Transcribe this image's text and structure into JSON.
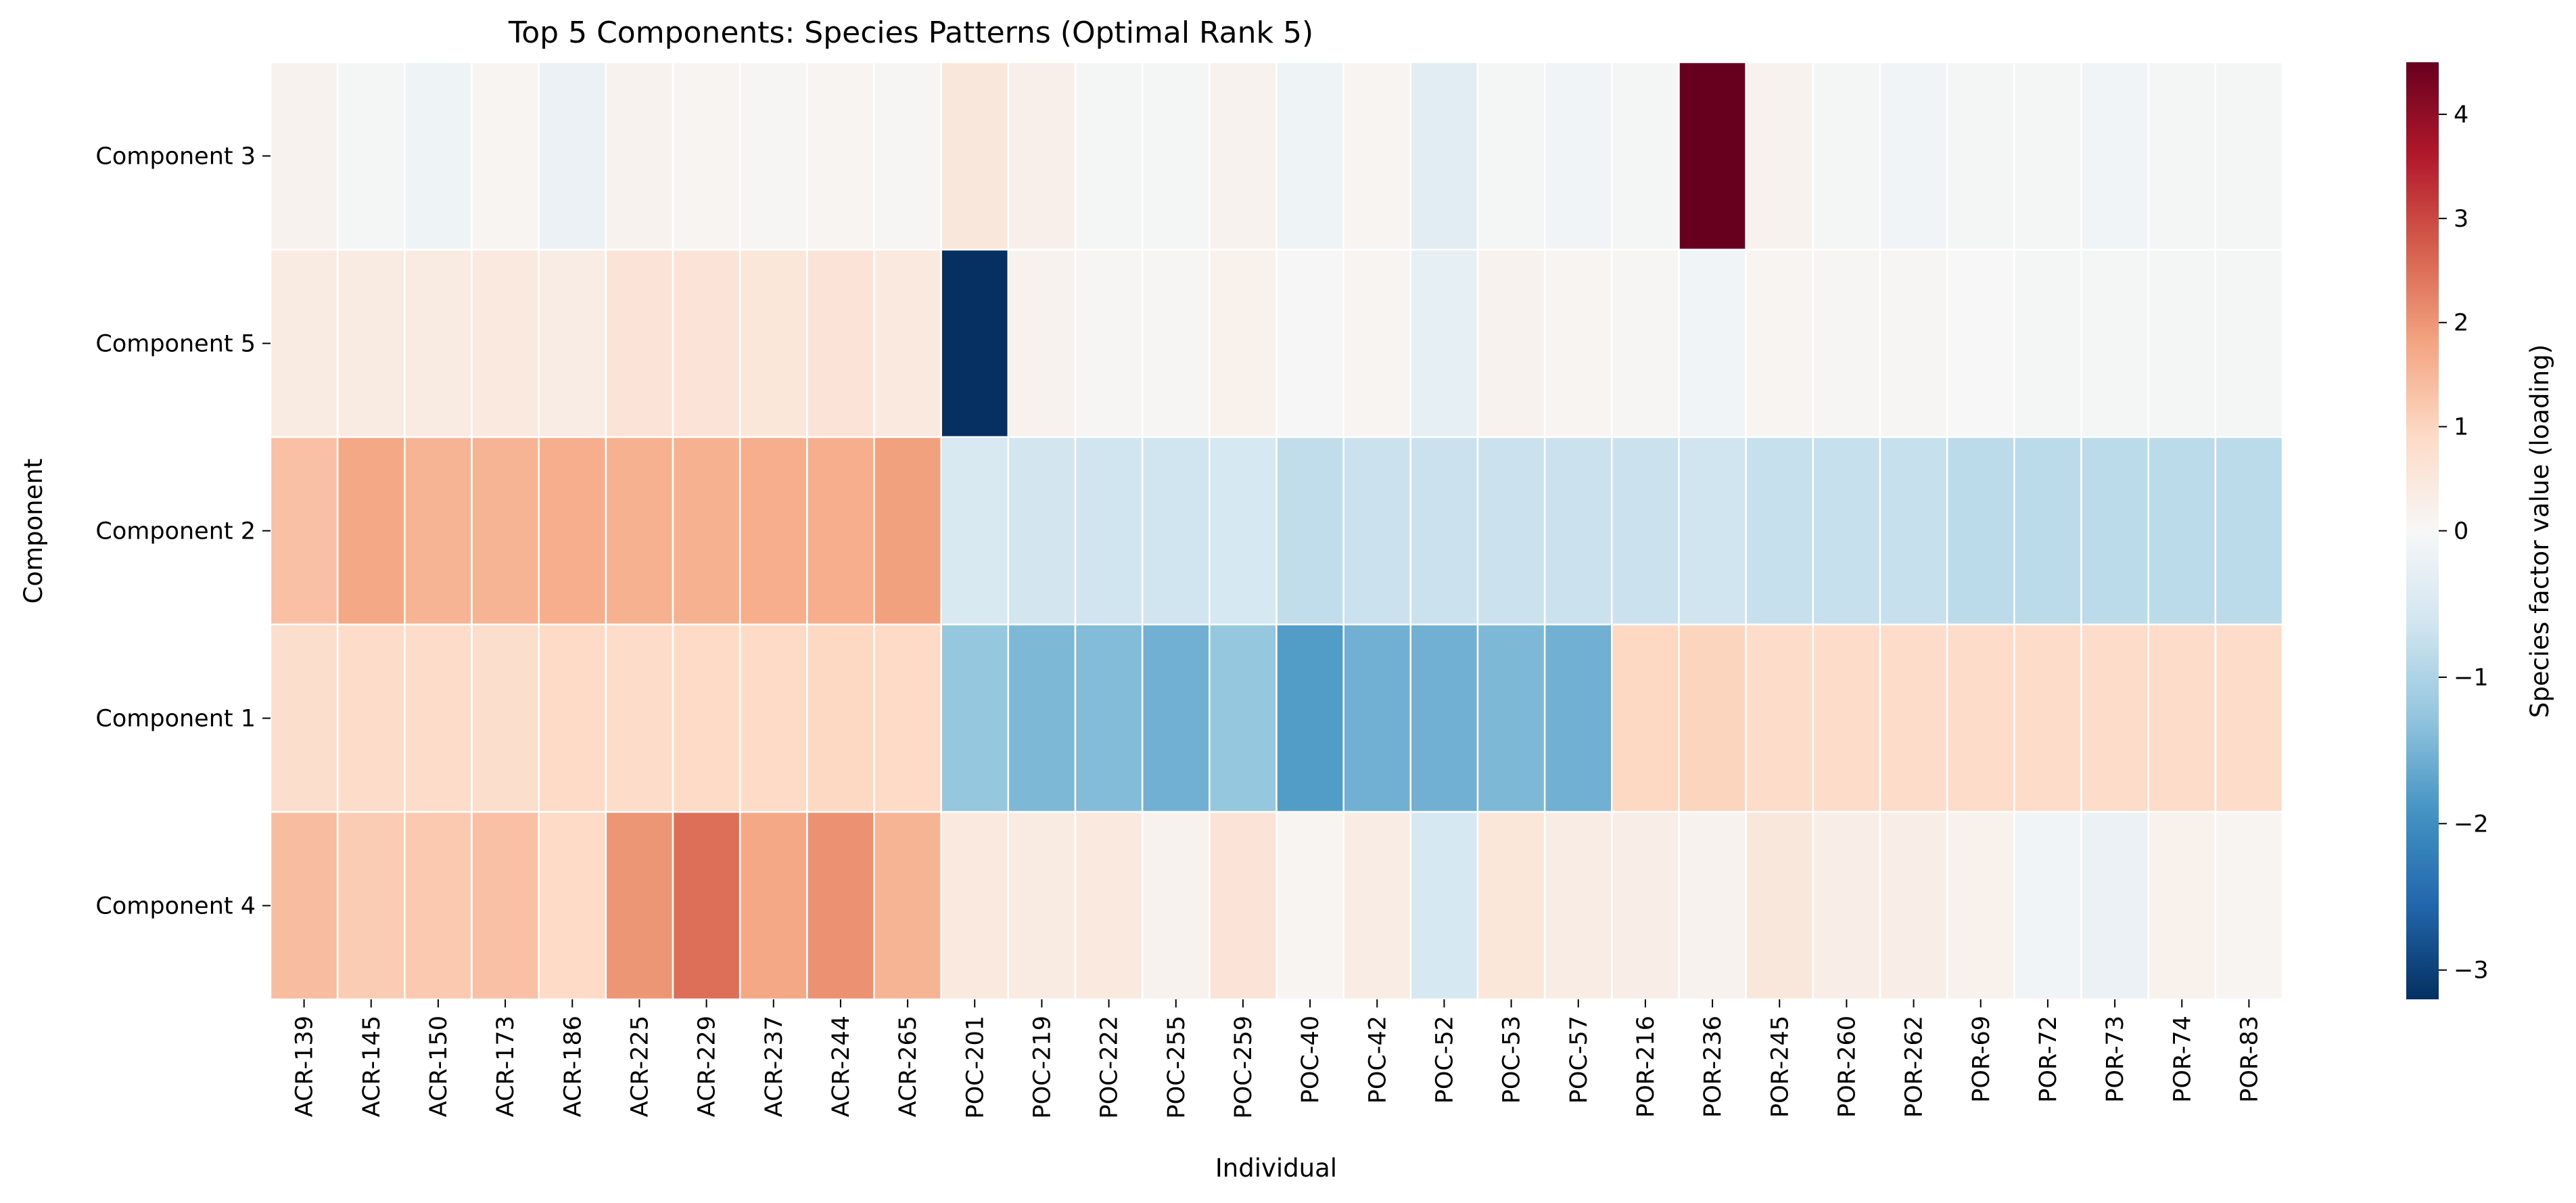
{
  "chart_data": {
    "type": "heatmap",
    "title": "Top 5 Components: Species Patterns (Optimal Rank 5)",
    "xlabel": "Individual",
    "ylabel": "Component",
    "colorbar_label": "Species factor value (loading)",
    "colormap": "RdBu_r",
    "vmin": -3.2,
    "vmax": 4.5,
    "colorbar_ticks": [
      -3,
      -2,
      -1,
      0,
      1,
      2,
      3,
      4
    ],
    "colorbar_tick_labels": [
      "−3",
      "−2",
      "−1",
      "0",
      "1",
      "2",
      "3",
      "4"
    ],
    "x_categories": [
      "ACR-139",
      "ACR-145",
      "ACR-150",
      "ACR-173",
      "ACR-186",
      "ACR-225",
      "ACR-229",
      "ACR-237",
      "ACR-244",
      "ACR-265",
      "POC-201",
      "POC-219",
      "POC-222",
      "POC-255",
      "POC-259",
      "POC-40",
      "POC-42",
      "POC-52",
      "POC-53",
      "POC-57",
      "POR-216",
      "POR-236",
      "POR-245",
      "POR-260",
      "POR-262",
      "POR-69",
      "POR-72",
      "POR-73",
      "POR-74",
      "POR-83"
    ],
    "y_categories": [
      "Component 3",
      "Component 5",
      "Component 2",
      "Component 1",
      "Component 4"
    ],
    "values": [
      [
        0.15,
        -0.05,
        -0.15,
        0.1,
        -0.2,
        0.15,
        0.1,
        0.05,
        0.1,
        0.05,
        0.5,
        0.25,
        -0.05,
        -0.05,
        0.15,
        -0.15,
        0.1,
        -0.35,
        -0.05,
        -0.1,
        -0.05,
        4.5,
        0.15,
        -0.05,
        -0.1,
        -0.05,
        -0.05,
        -0.1,
        -0.05,
        -0.05
      ],
      [
        0.4,
        0.4,
        0.4,
        0.45,
        0.35,
        0.6,
        0.6,
        0.55,
        0.6,
        0.45,
        -3.2,
        0.15,
        0.05,
        0.05,
        0.2,
        -0.02,
        0.1,
        -0.3,
        0.15,
        0.1,
        0.05,
        -0.1,
        0.1,
        0.05,
        0.05,
        0.0,
        -0.05,
        -0.05,
        -0.05,
        -0.05
      ],
      [
        1.35,
        1.75,
        1.55,
        1.55,
        1.65,
        1.6,
        1.6,
        1.65,
        1.65,
        1.85,
        -0.5,
        -0.6,
        -0.65,
        -0.65,
        -0.55,
        -0.8,
        -0.7,
        -0.7,
        -0.7,
        -0.7,
        -0.7,
        -0.65,
        -0.75,
        -0.75,
        -0.75,
        -0.85,
        -0.85,
        -0.85,
        -0.85,
        -0.85
      ],
      [
        0.8,
        0.85,
        0.85,
        0.8,
        0.9,
        0.85,
        0.9,
        0.9,
        0.95,
        0.9,
        -1.25,
        -1.45,
        -1.4,
        -1.55,
        -1.25,
        -1.8,
        -1.55,
        -1.55,
        -1.45,
        -1.55,
        0.95,
        1.0,
        0.85,
        0.85,
        0.85,
        0.85,
        0.85,
        0.85,
        0.85,
        0.85
      ],
      [
        1.4,
        1.15,
        1.2,
        1.35,
        0.9,
        2.0,
        2.5,
        1.75,
        2.05,
        1.55,
        0.45,
        0.4,
        0.45,
        0.15,
        0.6,
        0.1,
        0.35,
        -0.55,
        0.55,
        0.35,
        0.3,
        0.15,
        0.5,
        0.3,
        0.3,
        0.2,
        -0.1,
        -0.2,
        0.2,
        0.1
      ]
    ],
    "grid": false,
    "legend": "colorbar-right"
  }
}
